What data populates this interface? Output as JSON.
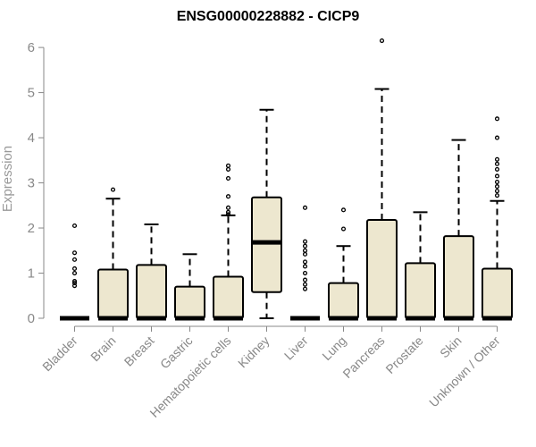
{
  "chart_data": {
    "type": "boxplot",
    "title": "ENSG00000228882 - CICP9",
    "xlabel": "",
    "ylabel": "Expression",
    "ylim": [
      0,
      6.2
    ],
    "yticks": [
      0,
      1,
      2,
      3,
      4,
      5,
      6
    ],
    "grid": false,
    "legend": "none",
    "colors": {
      "box_fill": "#ede7cf",
      "stroke": "#000000",
      "axis": "#888888",
      "tick_text": "#888888"
    },
    "categories": [
      "Bladder",
      "Brain",
      "Breast",
      "Gastric",
      "Hematopoietic cells",
      "Kidney",
      "Liver",
      "Lung",
      "Pancreas",
      "Prostate",
      "Skin",
      "Unknown / Other"
    ],
    "boxes": [
      {
        "category": "Bladder",
        "q1": 0,
        "median": 0,
        "q3": 0,
        "whisker_low": 0,
        "whisker_high": 0,
        "outliers": [
          0.72,
          0.78,
          0.82,
          1.0,
          1.1,
          1.3,
          1.45,
          2.05
        ]
      },
      {
        "category": "Brain",
        "q1": 0,
        "median": 0,
        "q3": 1.08,
        "whisker_low": 0,
        "whisker_high": 2.65,
        "outliers": [
          2.85
        ]
      },
      {
        "category": "Breast",
        "q1": 0,
        "median": 0,
        "q3": 1.18,
        "whisker_low": 0,
        "whisker_high": 2.08,
        "outliers": []
      },
      {
        "category": "Gastric",
        "q1": 0,
        "median": 0,
        "q3": 0.7,
        "whisker_low": 0,
        "whisker_high": 1.42,
        "outliers": []
      },
      {
        "category": "Hematopoietic cells",
        "q1": 0,
        "median": 0,
        "q3": 0.92,
        "whisker_low": 0,
        "whisker_high": 2.28,
        "outliers": [
          2.3,
          2.35,
          2.45,
          2.7,
          3.1,
          3.3,
          3.38
        ]
      },
      {
        "category": "Kidney",
        "q1": 0.58,
        "median": 1.68,
        "q3": 2.68,
        "whisker_low": 0,
        "whisker_high": 4.62,
        "outliers": []
      },
      {
        "category": "Liver",
        "q1": 0,
        "median": 0,
        "q3": 0,
        "whisker_low": 0,
        "whisker_high": 0,
        "outliers": [
          0.65,
          0.75,
          0.85,
          1.0,
          1.15,
          1.25,
          1.42,
          1.5,
          1.6,
          1.7,
          2.45
        ]
      },
      {
        "category": "Lung",
        "q1": 0,
        "median": 0,
        "q3": 0.78,
        "whisker_low": 0,
        "whisker_high": 1.6,
        "outliers": [
          1.98,
          2.4
        ]
      },
      {
        "category": "Pancreas",
        "q1": 0,
        "median": 0,
        "q3": 2.18,
        "whisker_low": 0,
        "whisker_high": 5.08,
        "outliers": [
          6.15
        ]
      },
      {
        "category": "Prostate",
        "q1": 0,
        "median": 0,
        "q3": 1.22,
        "whisker_low": 0,
        "whisker_high": 2.35,
        "outliers": []
      },
      {
        "category": "Skin",
        "q1": 0,
        "median": 0,
        "q3": 1.82,
        "whisker_low": 0,
        "whisker_high": 3.95,
        "outliers": []
      },
      {
        "category": "Unknown / Other",
        "q1": 0,
        "median": 0,
        "q3": 1.1,
        "whisker_low": 0,
        "whisker_high": 2.6,
        "outliers": [
          2.72,
          2.82,
          2.92,
          3.02,
          3.15,
          3.3,
          3.42,
          3.52,
          4.0,
          4.42
        ]
      }
    ]
  }
}
